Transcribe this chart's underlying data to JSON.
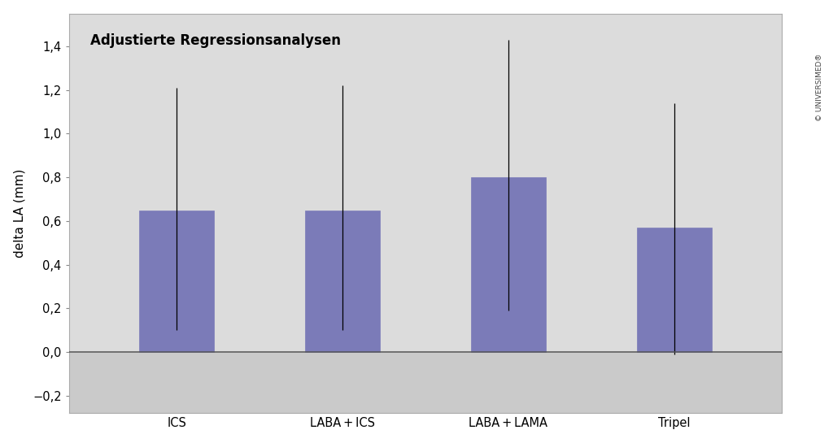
{
  "categories": [
    "ICS",
    "LABA + ICS",
    "LABA + LAMA",
    "Tripel"
  ],
  "values": [
    0.65,
    0.65,
    0.8,
    0.57
  ],
  "error_low": [
    0.1,
    0.1,
    0.19,
    -0.01
  ],
  "error_high": [
    1.21,
    1.22,
    1.43,
    1.14
  ],
  "bar_color": "#7B7BB8",
  "bar_edgecolor": "#7B7BB8",
  "fig_bg_color": "#FFFFFF",
  "plot_bg_color": "#DCDCDC",
  "plot_bg_below": "#CACACA",
  "title": "Adjustierte Regressionsanalysen",
  "ylabel": "delta LA (mm)",
  "ylim": [
    -0.28,
    1.55
  ],
  "yticks": [
    -0.2,
    0.0,
    0.2,
    0.4,
    0.6,
    0.8,
    1.0,
    1.2,
    1.4
  ],
  "ytick_labels": [
    "−0,2",
    "0,0",
    "0,2",
    "0,4",
    "0,6",
    "0,8",
    "1,0",
    "1,2",
    "1,4"
  ],
  "watermark": "© UNIVERSIMED®",
  "title_fontsize": 12,
  "label_fontsize": 11,
  "tick_fontsize": 10.5
}
